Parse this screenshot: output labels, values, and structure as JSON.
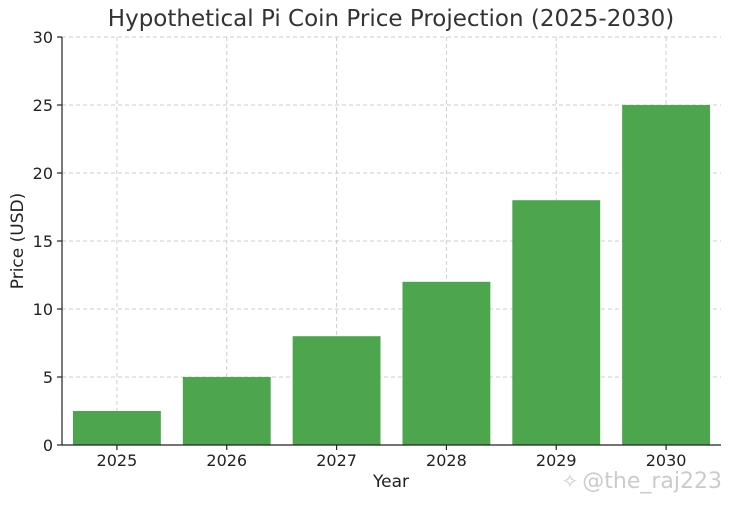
{
  "chart_data": {
    "type": "bar",
    "title": "Hypothetical Pi Coin Price Projection (2025-2030)",
    "xlabel": "Year",
    "ylabel": "Price (USD)",
    "categories": [
      "2025",
      "2026",
      "2027",
      "2028",
      "2029",
      "2030"
    ],
    "values": [
      2.5,
      5,
      8,
      12,
      18,
      25
    ],
    "ylim": [
      0,
      30
    ],
    "yticks": [
      0,
      5,
      10,
      15,
      20,
      25,
      30
    ],
    "grid": true,
    "bar_color": "#4da64d"
  },
  "watermark": {
    "text": "@the_raj223",
    "icon": "sparkle-icon"
  }
}
